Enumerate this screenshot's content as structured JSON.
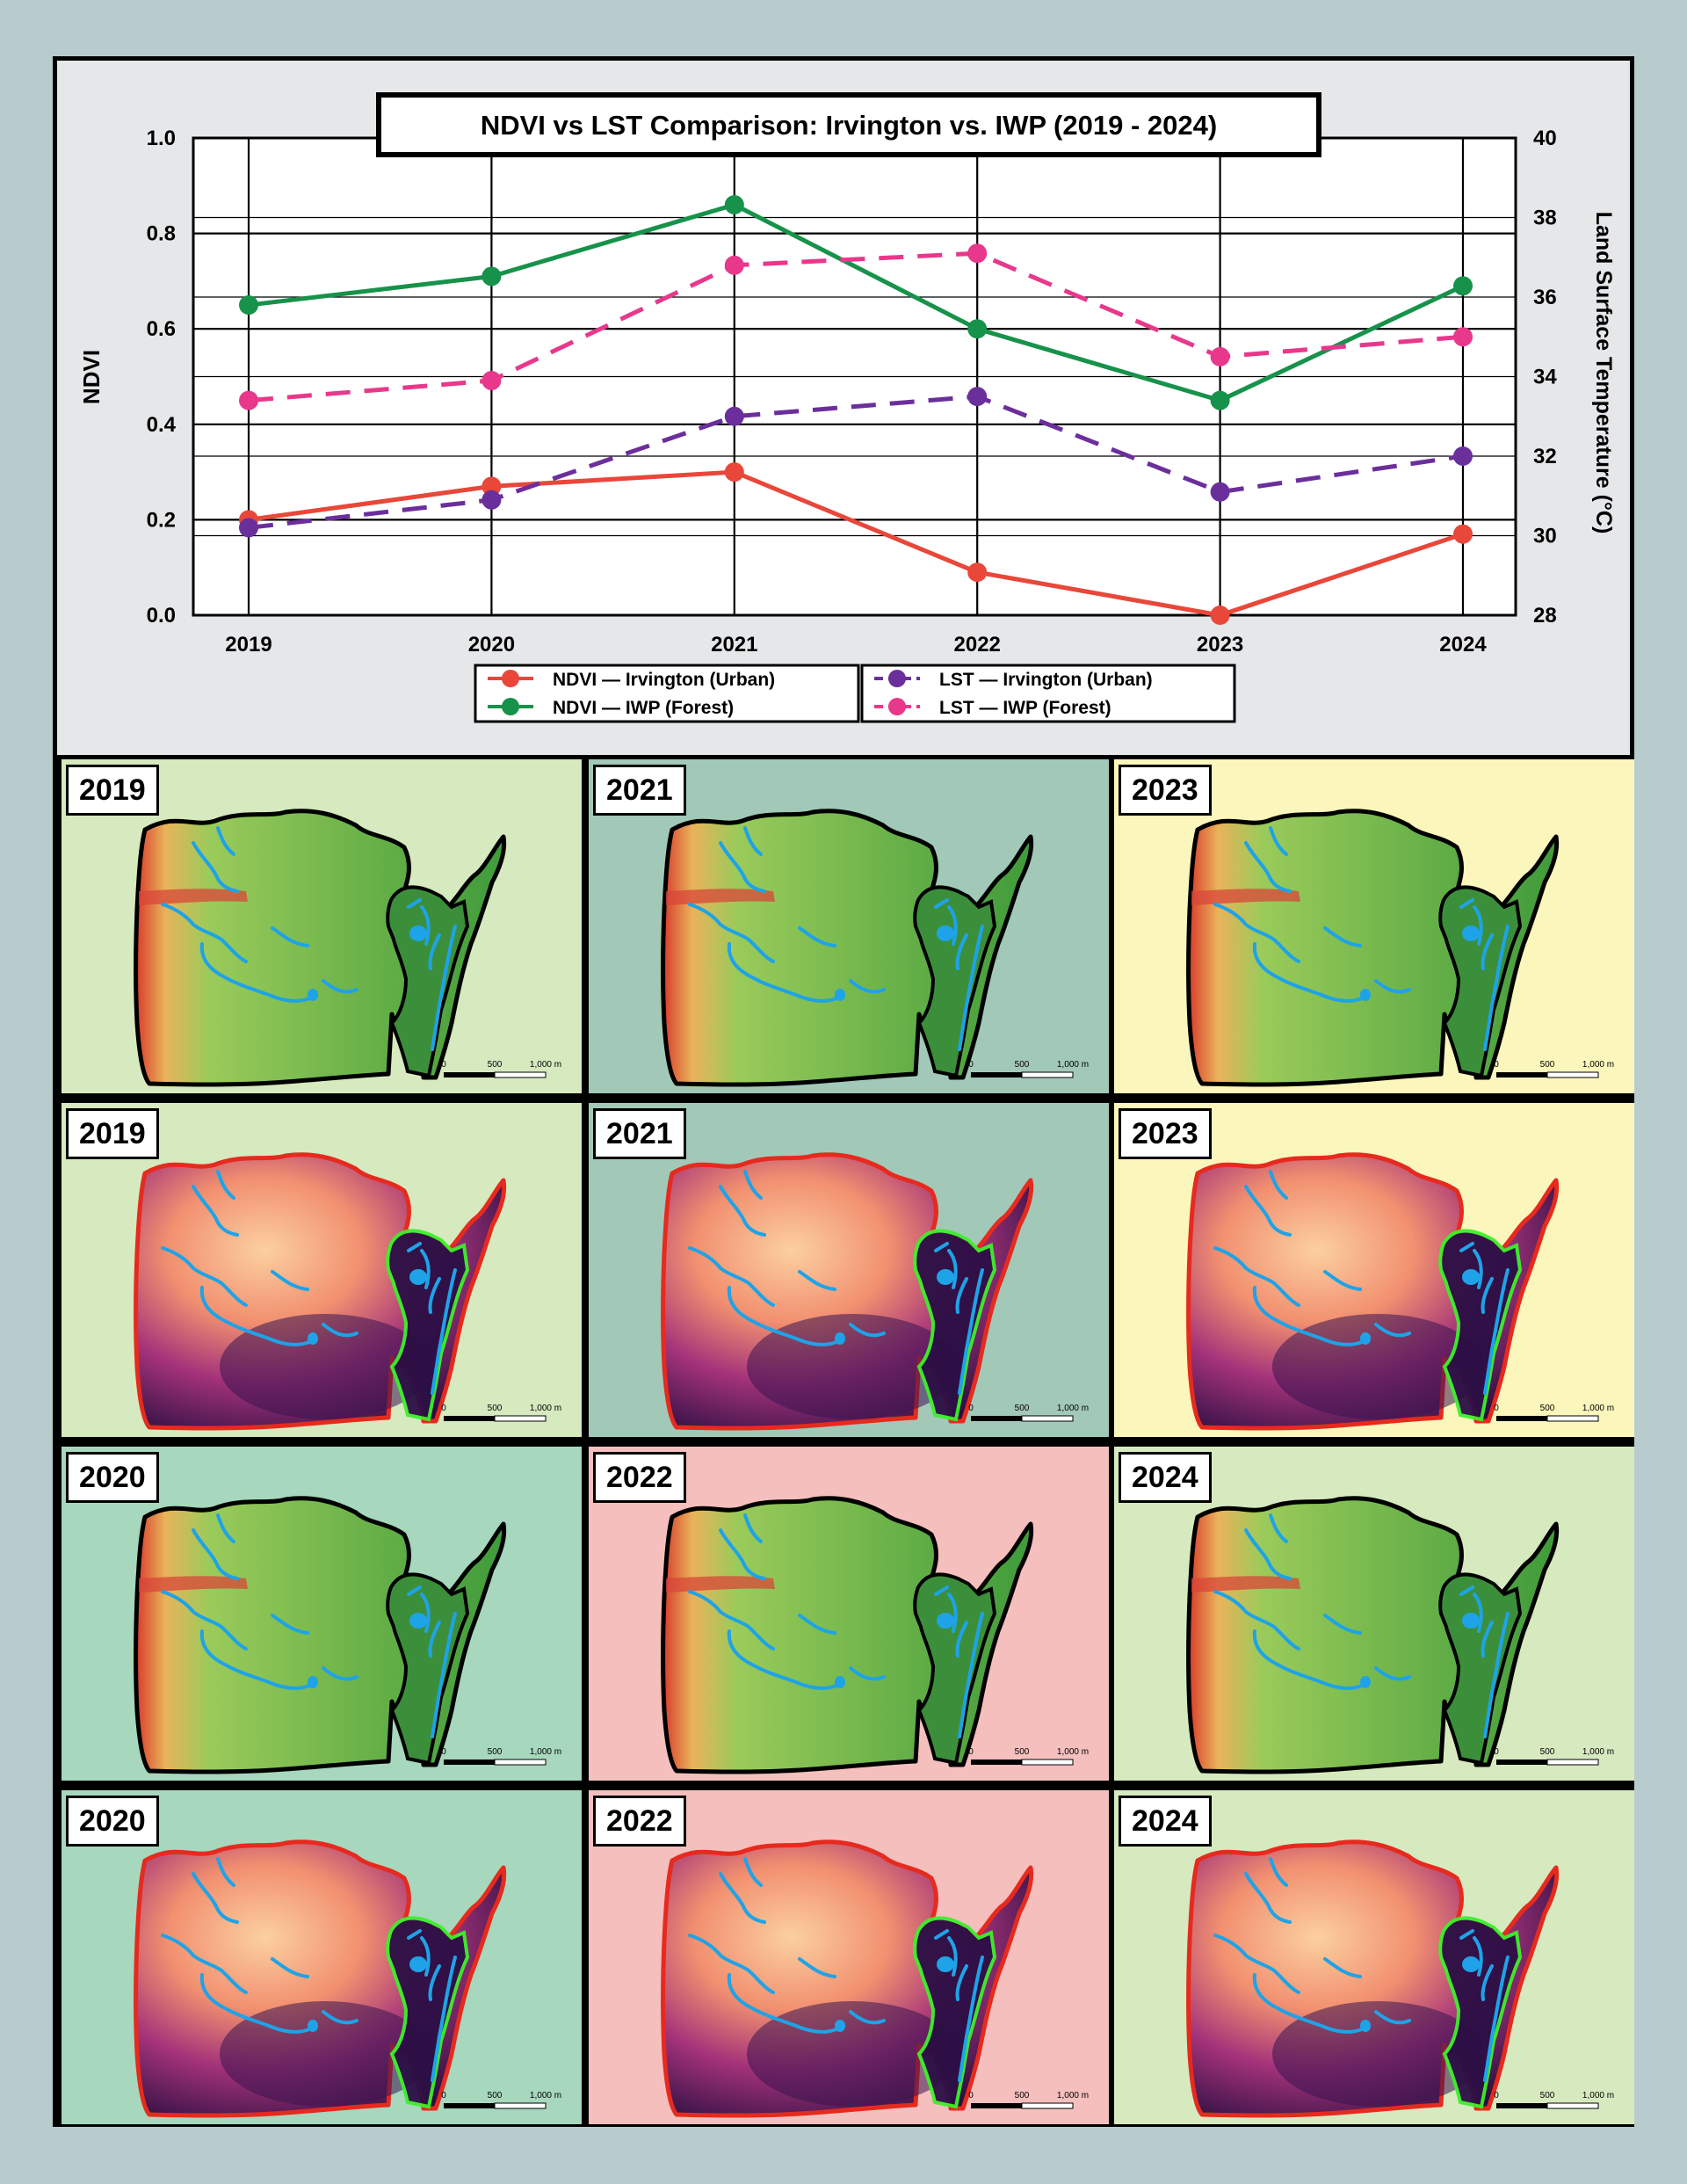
{
  "chart_data": {
    "type": "line",
    "title": "NDVI vs LST Comparison: Irvington vs. IWP (2019 - 2024)",
    "xlabel": "",
    "ylabel": "NDVI",
    "y2label": "Land Surface Temperature (°C)",
    "categories": [
      "2019",
      "2020",
      "2021",
      "2022",
      "2023",
      "2024"
    ],
    "ylim": [
      0,
      1.0
    ],
    "y2lim": [
      28,
      40
    ],
    "yticks": [
      "0.0",
      "0.2",
      "0.4",
      "0.6",
      "0.8",
      "1.0"
    ],
    "y2ticks": [
      "28",
      "30",
      "32",
      "34",
      "36",
      "38",
      "40"
    ],
    "grid": true,
    "legend_position": "bottom",
    "series": [
      {
        "name": "NDVI — Irvington (Urban)",
        "axis": "left",
        "style": "solid",
        "color": "#e8473a",
        "values": [
          0.2,
          0.27,
          0.3,
          0.09,
          0.0,
          0.17
        ]
      },
      {
        "name": "NDVI — IWP (Forest)",
        "axis": "left",
        "style": "solid",
        "color": "#17924a",
        "values": [
          0.65,
          0.71,
          0.86,
          0.6,
          0.45,
          0.69
        ]
      },
      {
        "name": "LST — Irvington (Urban)",
        "axis": "right",
        "style": "dashed",
        "color": "#6b2f9c",
        "values": [
          30.2,
          30.9,
          33.0,
          33.5,
          31.1,
          32.0
        ]
      },
      {
        "name": "LST — IWP (Forest)",
        "axis": "right",
        "style": "dashed",
        "color": "#e8388c",
        "values": [
          33.4,
          33.9,
          36.8,
          37.1,
          34.5,
          35.0
        ]
      }
    ]
  },
  "maps": {
    "scale_labels": [
      "0",
      "500",
      "1,000 m"
    ],
    "panels": [
      {
        "year": "2019",
        "kind": "ndvi",
        "bg": "#d6e9bf"
      },
      {
        "year": "2021",
        "kind": "ndvi",
        "bg": "#a2c8b8"
      },
      {
        "year": "2023",
        "kind": "ndvi",
        "bg": "#fbf6bb"
      },
      {
        "year": "2019",
        "kind": "lst",
        "bg": "#d6e9bf"
      },
      {
        "year": "2021",
        "kind": "lst",
        "bg": "#a2c8b8"
      },
      {
        "year": "2023",
        "kind": "lst",
        "bg": "#fbf6bb"
      },
      {
        "year": "2020",
        "kind": "ndvi",
        "bg": "#a7d7bd"
      },
      {
        "year": "2022",
        "kind": "ndvi",
        "bg": "#f4bfbd"
      },
      {
        "year": "2024",
        "kind": "ndvi",
        "bg": "#d6e9bf"
      },
      {
        "year": "2020",
        "kind": "lst",
        "bg": "#a7d7bd"
      },
      {
        "year": "2022",
        "kind": "lst",
        "bg": "#f4bfbd"
      },
      {
        "year": "2024",
        "kind": "lst",
        "bg": "#d6e9bf"
      }
    ]
  }
}
